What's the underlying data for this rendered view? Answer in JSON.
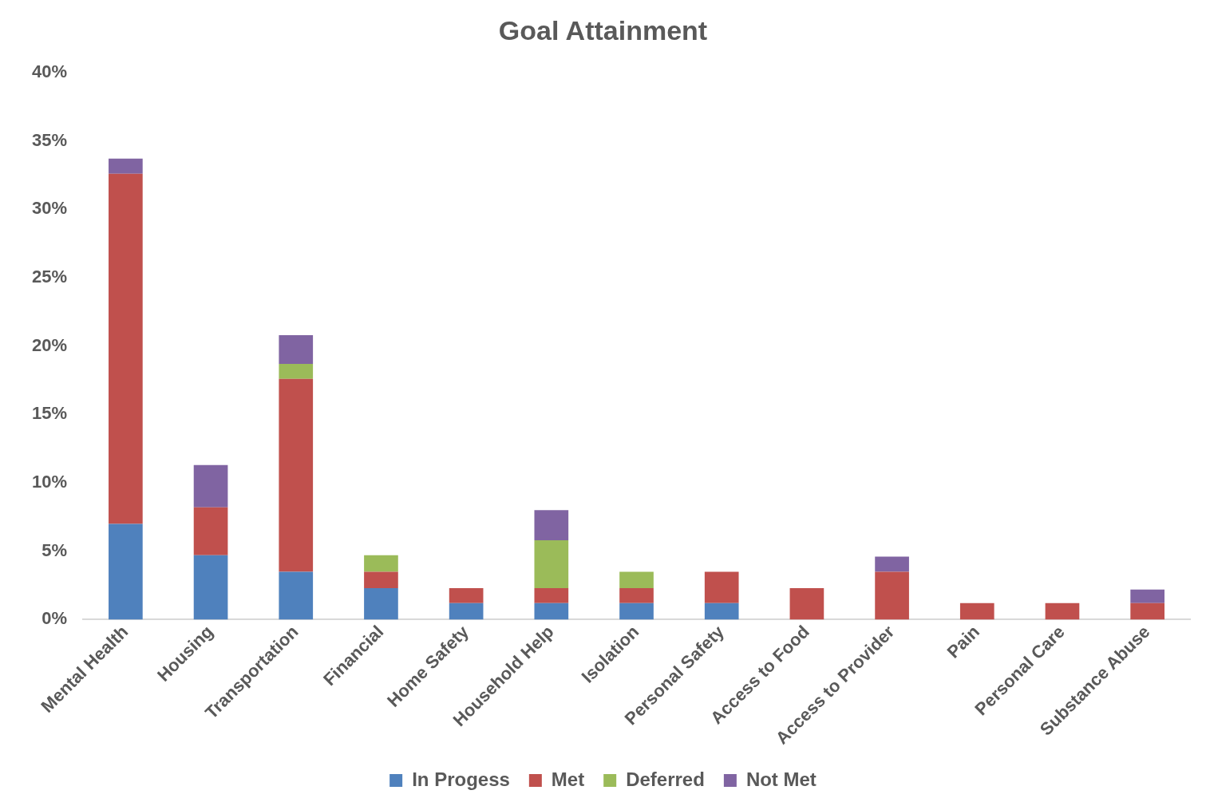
{
  "chart_data": {
    "type": "bar",
    "title": "Goal Attainment",
    "stacked": true,
    "categories": [
      "Mental Health",
      "Housing",
      "Transportation",
      "Financial",
      "Home Safety",
      "Household Help",
      "Isolation",
      "Personal Safety",
      "Access to Food",
      "Access to Provider",
      "Pain",
      "Personal Care",
      "Substance Abuse"
    ],
    "series": [
      {
        "name": "In Progess",
        "color": "#4f81bd",
        "values": [
          7.0,
          4.7,
          3.5,
          2.3,
          1.2,
          1.2,
          1.2,
          1.2,
          0,
          0,
          0,
          0,
          0
        ]
      },
      {
        "name": "Met",
        "color": "#c0504d",
        "values": [
          25.6,
          3.5,
          14.1,
          1.2,
          1.1,
          1.1,
          1.1,
          2.3,
          2.3,
          3.5,
          1.2,
          1.2,
          1.2
        ]
      },
      {
        "name": "Deferred",
        "color": "#9bbb59",
        "values": [
          0,
          0,
          1.1,
          1.2,
          0,
          3.5,
          1.2,
          0,
          0,
          0,
          0,
          0,
          0
        ]
      },
      {
        "name": "Not Met",
        "color": "#8064a2",
        "values": [
          1.1,
          3.1,
          2.1,
          0,
          0,
          2.2,
          0,
          0,
          0,
          1.1,
          0,
          0,
          1.0
        ]
      }
    ],
    "ylim": [
      0,
      40
    ],
    "yticks": [
      {
        "value": 0,
        "label": "0%"
      },
      {
        "value": 5,
        "label": "5%"
      },
      {
        "value": 10,
        "label": "10%"
      },
      {
        "value": 15,
        "label": "15%"
      },
      {
        "value": 20,
        "label": "20%"
      },
      {
        "value": 25,
        "label": "25%"
      },
      {
        "value": 30,
        "label": "30%"
      },
      {
        "value": 35,
        "label": "35%"
      },
      {
        "value": 40,
        "label": "40%"
      }
    ],
    "grid": false,
    "legend": "bottom"
  }
}
